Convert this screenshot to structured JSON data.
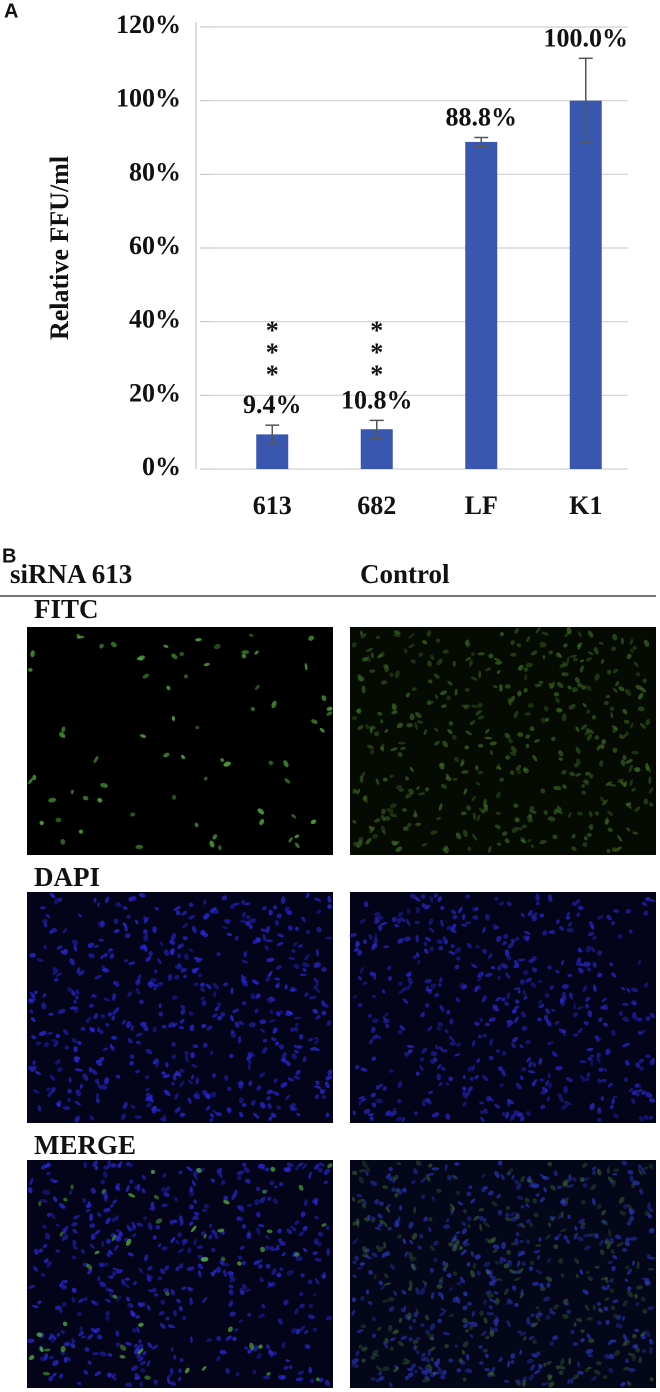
{
  "chart_data": {
    "type": "bar",
    "panel_label": "A",
    "y_label": "Relative FFU/ml",
    "categories": [
      "613",
      "682",
      "LF",
      "K1"
    ],
    "series": [
      {
        "color": "#3a57b0",
        "values": [
          9.4,
          10.8,
          88.8,
          100.0
        ],
        "errors": [
          2.5,
          2.4,
          1.2,
          11.5
        ],
        "value_labels": [
          "9.4%",
          "10.8%",
          "88.8%",
          "100.0%"
        ]
      }
    ],
    "annotations": [
      "***",
      "***"
    ],
    "ylim": [
      0,
      120
    ],
    "yticks": [
      {
        "value": 0,
        "label": "0%"
      },
      {
        "value": 20,
        "label": "20%"
      },
      {
        "value": 40,
        "label": "40%"
      },
      {
        "value": 60,
        "label": "60%"
      },
      {
        "value": 80,
        "label": "80%"
      },
      {
        "value": 100,
        "label": "100%"
      },
      {
        "value": 120,
        "label": "120%"
      }
    ],
    "grid": true
  },
  "panel_b": {
    "label": "B",
    "columns": [
      "siRNA 613",
      "Control"
    ],
    "rows": [
      "FITC",
      "DAPI",
      "MERGE"
    ]
  }
}
